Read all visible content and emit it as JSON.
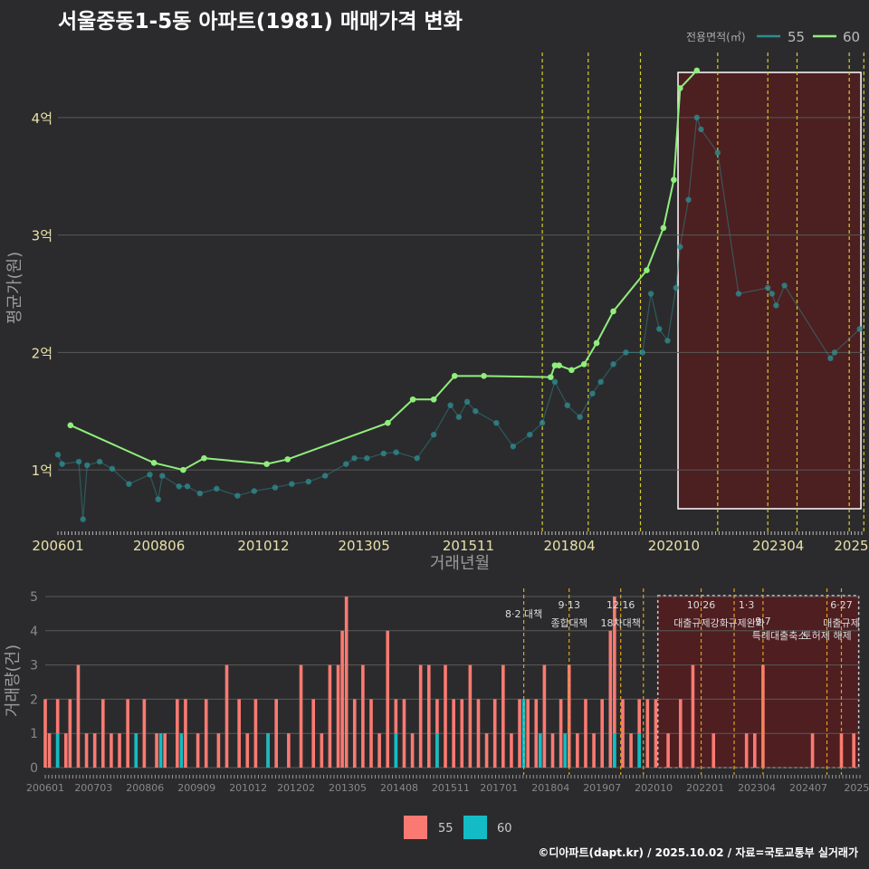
{
  "title": "서울중동1-5동 아파트(1981) 매매가격 변화",
  "footer": "©디아파트(dapt.kr) / 2025.10.02 / 자료=국토교통부 실거래가",
  "colors": {
    "bg": "#2b2b2d",
    "s55": "#2e8b8e",
    "s60": "#90ee7c",
    "bar55": "#fa7a72",
    "bar60": "#13bcc4",
    "vline": "#d6cc2e",
    "shade": "#521d20",
    "grid": "#5a5a5a"
  },
  "chart_data": [
    {
      "type": "line",
      "xlabel": "거래년월",
      "ylabel": "평균가(원)",
      "xlim": [
        2006.0,
        2025.25
      ],
      "ylim": [
        0.5,
        4.6
      ],
      "yticks": [
        1,
        2,
        3,
        4
      ],
      "ytick_labels": [
        "1억",
        "2억",
        "3억",
        "4억"
      ],
      "xticks": [
        2006.0,
        2008.42,
        2010.92,
        2013.33,
        2015.83,
        2018.25,
        2020.75,
        2023.25,
        2025.0
      ],
      "xtick_labels": [
        "200601",
        "200806",
        "201012",
        "201305",
        "201511",
        "201804",
        "202010",
        "202304",
        "2025"
      ],
      "legend_title": "전용면적(㎡)",
      "legend_position": "top-right",
      "series": [
        {
          "name": "60",
          "type": "line",
          "x": [
            2006.3,
            2008.3,
            2009.0,
            2009.5,
            2011.0,
            2011.5,
            2013.9,
            2014.5,
            2015.0,
            2015.5,
            2016.2,
            2017.8,
            2017.9,
            2018.0,
            2018.3,
            2018.6,
            2018.9,
            2019.3,
            2020.1,
            2020.5,
            2020.75,
            2020.9,
            2021.3
          ],
          "y": [
            1.38,
            1.06,
            1.0,
            1.1,
            1.05,
            1.09,
            1.4,
            1.6,
            1.6,
            1.8,
            1.8,
            1.79,
            1.89,
            1.89,
            1.85,
            1.9,
            2.08,
            2.35,
            2.7,
            3.06,
            3.47,
            4.25,
            4.4
          ]
        },
        {
          "name": "55",
          "type": "scatter",
          "x": [
            2006.0,
            2006.1,
            2006.5,
            2006.6,
            2006.7,
            2007.0,
            2007.3,
            2007.7,
            2008.2,
            2008.4,
            2008.5,
            2008.9,
            2009.1,
            2009.4,
            2009.8,
            2010.3,
            2010.7,
            2011.2,
            2011.6,
            2012.0,
            2012.4,
            2012.9,
            2013.1,
            2013.4,
            2013.8,
            2014.1,
            2014.6,
            2015.0,
            2015.4,
            2015.6,
            2015.8,
            2016.0,
            2016.5,
            2016.9,
            2017.3,
            2017.6,
            2017.9,
            2018.2,
            2018.5,
            2018.8,
            2019.0,
            2019.3,
            2019.6,
            2020.0,
            2020.2,
            2020.4,
            2020.6,
            2020.8,
            2020.9,
            2021.1,
            2021.3,
            2021.4,
            2021.8,
            2022.3,
            2023.0,
            2023.1,
            2023.2,
            2023.4,
            2024.5,
            2024.6,
            2025.2
          ],
          "y": [
            1.13,
            1.05,
            1.07,
            0.58,
            1.04,
            1.07,
            1.01,
            0.88,
            0.96,
            0.75,
            0.95,
            0.86,
            0.86,
            0.8,
            0.84,
            0.78,
            0.82,
            0.85,
            0.88,
            0.9,
            0.95,
            1.05,
            1.1,
            1.1,
            1.14,
            1.15,
            1.1,
            1.3,
            1.55,
            1.45,
            1.58,
            1.5,
            1.4,
            1.2,
            1.3,
            1.4,
            1.75,
            1.55,
            1.45,
            1.65,
            1.75,
            1.9,
            2.0,
            2.0,
            2.5,
            2.2,
            2.1,
            2.55,
            2.9,
            3.3,
            4.0,
            3.9,
            3.7,
            2.5,
            2.55,
            2.5,
            2.4,
            2.57,
            1.95,
            2.0,
            2.2
          ]
        }
      ],
      "annotations": {
        "vlines": [
          2017.6,
          2018.7,
          2019.95,
          2021.8,
          2023.0,
          2023.7,
          2024.95,
          2025.3
        ],
        "shaded_range": [
          2020.85,
          2025.23
        ]
      }
    },
    {
      "type": "bar",
      "xlabel": "",
      "ylabel": "거래량(건)",
      "ylim": [
        0,
        5
      ],
      "yticks": [
        0,
        1,
        2,
        3,
        4,
        5
      ],
      "xlim": [
        2006.0,
        2025.75
      ],
      "xticks": [
        2006.0,
        2007.17,
        2008.42,
        2009.67,
        2010.92,
        2012.08,
        2013.33,
        2014.58,
        2015.83,
        2017.0,
        2018.25,
        2019.5,
        2020.75,
        2022.0,
        2023.25,
        2024.5,
        2025.67
      ],
      "xtick_labels": [
        "200601",
        "200703",
        "200806",
        "200909",
        "201012",
        "201202",
        "201305",
        "201408",
        "201511",
        "201701",
        "201804",
        "201907",
        "202010",
        "202201",
        "202304",
        "202407",
        "2025"
      ],
      "legend_position": "bottom",
      "legend": [
        "55",
        "60"
      ],
      "series": [
        {
          "name": "55",
          "x": [
            2006.0,
            2006.1,
            2006.3,
            2006.5,
            2006.6,
            2006.8,
            2007.0,
            2007.2,
            2007.4,
            2007.6,
            2007.8,
            2008.0,
            2008.2,
            2008.4,
            2008.7,
            2008.9,
            2009.2,
            2009.4,
            2009.7,
            2009.9,
            2010.2,
            2010.4,
            2010.7,
            2010.9,
            2011.1,
            2011.4,
            2011.6,
            2011.9,
            2012.2,
            2012.5,
            2012.7,
            2012.9,
            2013.1,
            2013.2,
            2013.3,
            2013.5,
            2013.7,
            2013.9,
            2014.1,
            2014.3,
            2014.5,
            2014.7,
            2014.9,
            2015.1,
            2015.3,
            2015.5,
            2015.7,
            2015.9,
            2016.1,
            2016.3,
            2016.5,
            2016.7,
            2016.9,
            2017.1,
            2017.3,
            2017.5,
            2017.7,
            2017.9,
            2018.1,
            2018.3,
            2018.5,
            2018.7,
            2018.9,
            2019.1,
            2019.3,
            2019.5,
            2019.7,
            2019.8,
            2020.0,
            2020.2,
            2020.4,
            2020.6,
            2020.8,
            2021.1,
            2021.4,
            2021.7,
            2022.2,
            2023.0,
            2023.2,
            2023.4,
            2024.6,
            2025.3,
            2025.6
          ],
          "values": [
            2,
            1,
            2,
            1,
            2,
            3,
            1,
            1,
            2,
            1,
            1,
            2,
            1,
            2,
            1,
            1,
            2,
            2,
            1,
            2,
            1,
            3,
            2,
            1,
            2,
            1,
            2,
            1,
            3,
            2,
            1,
            3,
            3,
            4,
            5,
            2,
            3,
            2,
            1,
            4,
            2,
            2,
            1,
            3,
            3,
            2,
            3,
            2,
            2,
            3,
            2,
            1,
            2,
            3,
            1,
            2,
            2,
            2,
            3,
            1,
            2,
            3,
            1,
            2,
            1,
            2,
            4,
            5,
            2,
            1,
            2,
            2,
            2,
            1,
            2,
            3,
            1,
            1,
            1,
            3,
            1,
            1,
            1
          ]
        },
        {
          "name": "60",
          "x": [
            2006.3,
            2008.2,
            2008.8,
            2009.3,
            2011.4,
            2014.5,
            2015.5,
            2017.6,
            2018.0,
            2018.6,
            2019.8,
            2020.4
          ],
          "values": [
            1,
            1,
            1,
            1,
            1,
            1,
            1,
            2,
            1,
            1,
            1,
            1
          ]
        }
      ],
      "annotations": {
        "vlines": [
          2017.6,
          2018.7,
          2019.95,
          2020.5,
          2021.9,
          2022.7,
          2023.4,
          2024.95,
          2025.3
        ],
        "shaded_range": [
          2020.85,
          2025.72
        ],
        "labels": [
          {
            "x": 2017.6,
            "top": "",
            "bottom": "8·2 대책"
          },
          {
            "x": 2018.7,
            "top": "9·13",
            "bottom": "종합대책"
          },
          {
            "x": 2019.95,
            "top": "12·16",
            "bottom": "18차대책"
          },
          {
            "x": 2021.9,
            "top": "10·26",
            "bottom": "대출규제강화"
          },
          {
            "x": 2023.0,
            "top": "1·3",
            "bottom": "규제완화"
          },
          {
            "x": 2023.4,
            "top": "",
            "bottom": "9·7"
          },
          {
            "x": 2023.8,
            "top": "",
            "bottom": "특례대출축소"
          },
          {
            "x": 2024.95,
            "top": "",
            "bottom": "토허제 해제"
          },
          {
            "x": 2025.3,
            "top": "6·27",
            "bottom": "대출규제"
          }
        ]
      }
    }
  ]
}
